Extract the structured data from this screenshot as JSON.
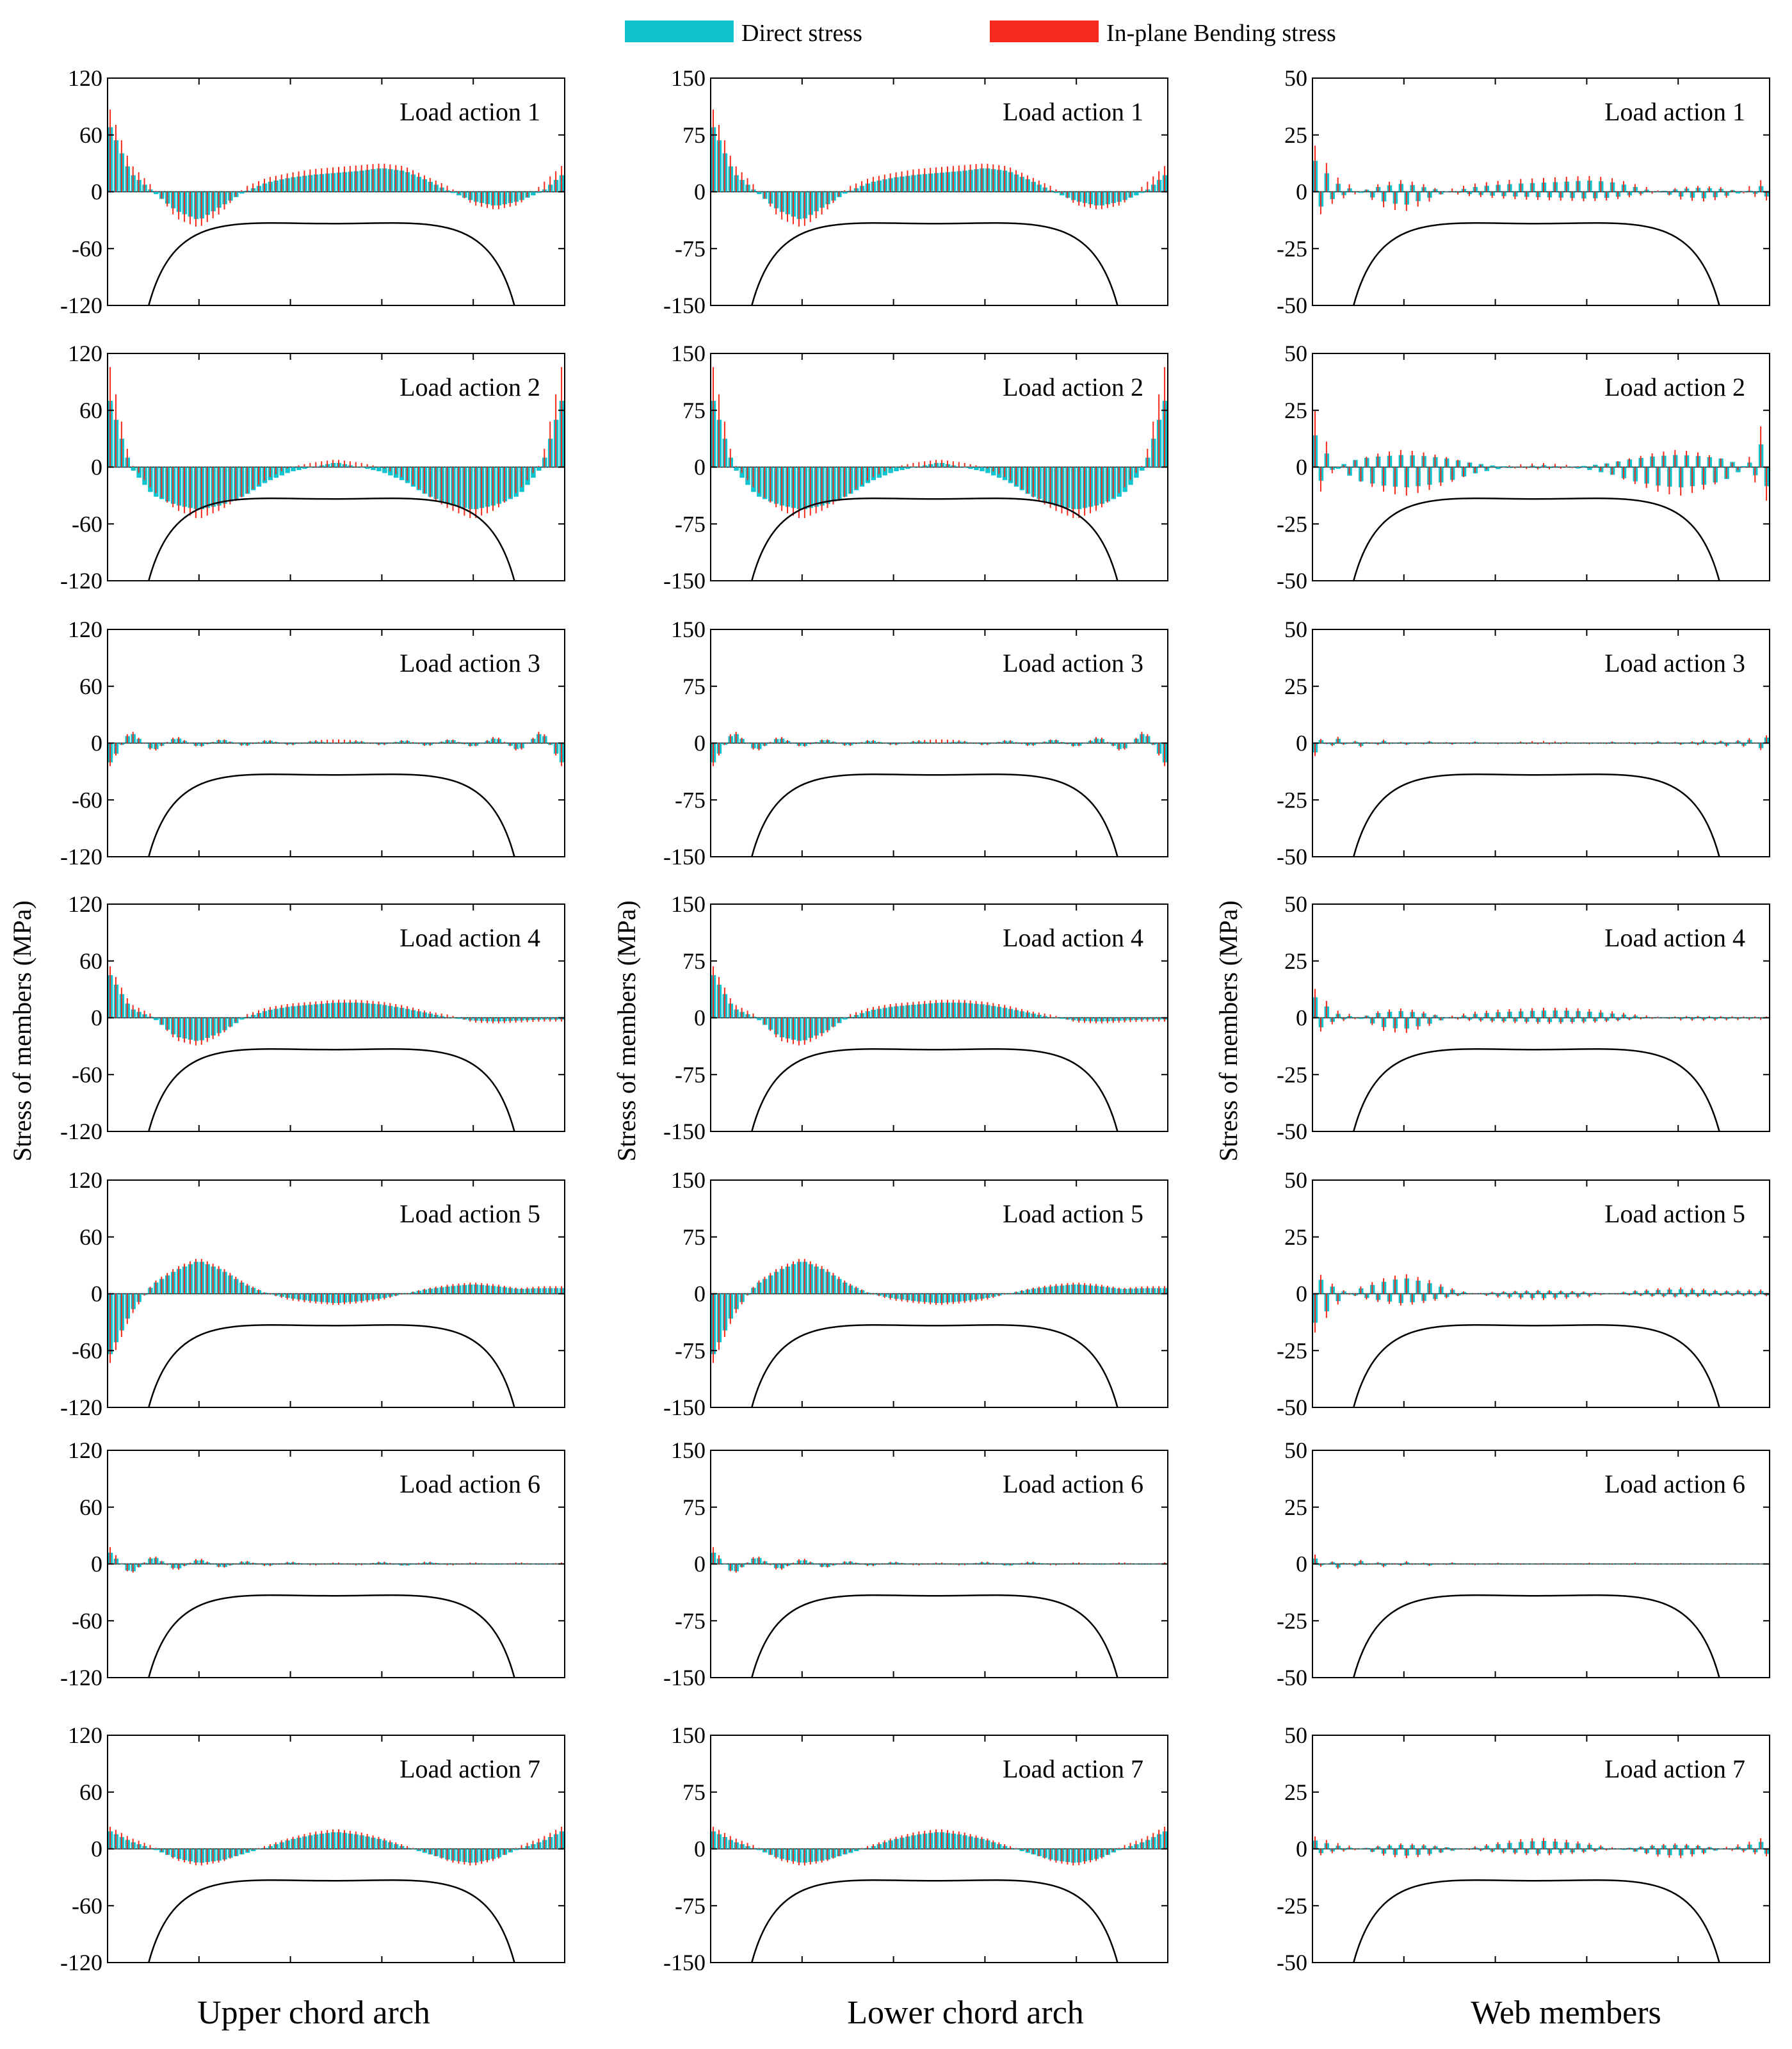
{
  "chart_data": {
    "type": "bar",
    "legend": {
      "placement": "top-center",
      "items": [
        {
          "label": "Direct stress",
          "color": "#10c4cf"
        },
        {
          "label": "In-plane Bending stress",
          "color": "#f52a1c"
        }
      ]
    },
    "ylabel": "Stress of members (MPa)",
    "columns": [
      {
        "title": "Upper chord arch",
        "ylim": [
          -120,
          120
        ],
        "yticks": [
          "120",
          "60",
          "0",
          "-60",
          "-120"
        ],
        "ytick_values": [
          120,
          60,
          0,
          -60,
          -120
        ],
        "kind": "chord"
      },
      {
        "title": "Lower chord arch",
        "ylim": [
          -150,
          150
        ],
        "yticks": [
          "150",
          "75",
          "0",
          "-75",
          "-150"
        ],
        "ytick_values": [
          150,
          75,
          0,
          -75,
          -150
        ],
        "kind": "chord"
      },
      {
        "title": "Web members",
        "ylim": [
          -50,
          50
        ],
        "yticks": [
          "50",
          "25",
          "0",
          "-25",
          "-50"
        ],
        "ytick_values": [
          50,
          25,
          0,
          -25,
          -50
        ],
        "kind": "web"
      }
    ],
    "rows": [
      "Load action 1",
      "Load action 2",
      "Load action 3",
      "Load action 4",
      "Load action 5",
      "Load action 6",
      "Load action 7"
    ],
    "x_positions": [
      0,
      0.05,
      0.1,
      0.15,
      0.2,
      0.25,
      0.3,
      0.35,
      0.4,
      0.45,
      0.5,
      0.55,
      0.6,
      0.65,
      0.7,
      0.75,
      0.8,
      0.85,
      0.9,
      0.95,
      1
    ],
    "series_profiles": [
      [
        {
          "name": "Direct stress",
          "values": [
            75,
            20,
            0,
            -20,
            -30,
            -15,
            0,
            10,
            15,
            18,
            20,
            22,
            25,
            22,
            12,
            0,
            -10,
            -15,
            -10,
            0,
            20
          ]
        },
        {
          "name": "In-plane Bending stress",
          "values": [
            95,
            30,
            5,
            -28,
            -38,
            -22,
            5,
            15,
            20,
            24,
            26,
            28,
            30,
            27,
            16,
            5,
            -14,
            -19,
            -14,
            8,
            30
          ]
        }
      ],
      [
        {
          "name": "Direct stress",
          "values": [
            80,
            0,
            -30,
            -40,
            -45,
            -40,
            -30,
            -15,
            -5,
            0,
            5,
            0,
            -5,
            -15,
            -30,
            -40,
            -45,
            -40,
            -30,
            0,
            80
          ]
        },
        {
          "name": "In-plane Bending stress",
          "values": [
            120,
            5,
            -25,
            -45,
            -55,
            -45,
            -30,
            -12,
            0,
            5,
            8,
            5,
            0,
            -12,
            -30,
            -45,
            -55,
            -45,
            -25,
            5,
            120
          ]
        }
      ],
      [
        {
          "name": "Direct stress",
          "values": [
            -25,
            12,
            -8,
            6,
            -4,
            4,
            -3,
            3,
            -2,
            2,
            0,
            2,
            -2,
            3,
            -3,
            4,
            -4,
            6,
            -8,
            12,
            -25
          ]
        },
        {
          "name": "In-plane Bending stress",
          "values": [
            -30,
            15,
            -10,
            8,
            -5,
            5,
            -4,
            4,
            -3,
            3,
            4,
            3,
            -3,
            4,
            -4,
            5,
            -5,
            8,
            -10,
            15,
            -30
          ]
        }
      ],
      [
        {
          "name": "Direct stress",
          "values": [
            50,
            10,
            0,
            -20,
            -25,
            -15,
            0,
            8,
            12,
            14,
            16,
            16,
            14,
            10,
            5,
            0,
            -3,
            -4,
            -3,
            -2,
            -2
          ]
        },
        {
          "name": "In-plane Bending stress",
          "values": [
            60,
            15,
            3,
            -24,
            -30,
            -18,
            3,
            11,
            15,
            17,
            19,
            19,
            17,
            13,
            7,
            3,
            -5,
            -6,
            -5,
            -4,
            -4
          ]
        }
      ],
      [
        {
          "name": "Direct stress",
          "values": [
            -70,
            -20,
            10,
            25,
            35,
            25,
            10,
            0,
            -5,
            -8,
            -10,
            -8,
            -5,
            0,
            5,
            8,
            10,
            8,
            5,
            6,
            6
          ]
        },
        {
          "name": "In-plane Bending stress",
          "values": [
            -80,
            -25,
            12,
            28,
            38,
            28,
            12,
            0,
            -7,
            -10,
            -12,
            -10,
            -7,
            0,
            6,
            10,
            12,
            10,
            6,
            8,
            8
          ]
        }
      ],
      [
        {
          "name": "Direct stress",
          "values": [
            15,
            -10,
            8,
            -6,
            5,
            -4,
            3,
            -2,
            2,
            -1,
            1,
            -1,
            2,
            -2,
            2,
            -1,
            1,
            -1,
            1,
            -1,
            1
          ]
        },
        {
          "name": "In-plane Bending stress",
          "values": [
            22,
            -12,
            10,
            -8,
            7,
            -5,
            4,
            -3,
            3,
            -2,
            2,
            -2,
            3,
            -2,
            3,
            -2,
            2,
            -1,
            2,
            -1,
            2
          ]
        }
      ],
      [
        {
          "name": "Direct stress",
          "values": [
            20,
            8,
            0,
            -10,
            -15,
            -12,
            -5,
            2,
            10,
            15,
            18,
            15,
            10,
            2,
            -5,
            -12,
            -15,
            -10,
            0,
            8,
            20
          ]
        },
        {
          "name": "In-plane Bending stress",
          "values": [
            25,
            12,
            3,
            -12,
            -18,
            -14,
            -4,
            4,
            12,
            18,
            21,
            18,
            12,
            4,
            -4,
            -14,
            -18,
            -12,
            3,
            12,
            25
          ]
        }
      ]
    ]
  }
}
